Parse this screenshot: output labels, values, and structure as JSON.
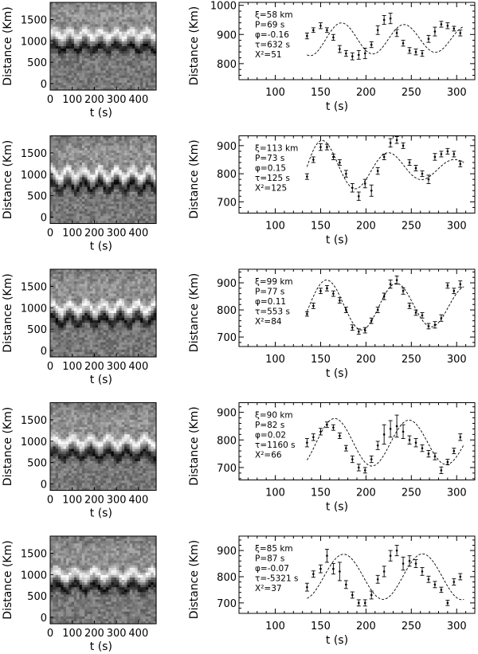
{
  "chart_data": [
    {
      "type": "heatmap",
      "xlabel": "t (s)",
      "ylabel": "Distance (Km)",
      "xlim": [
        0,
        480
      ],
      "ylim": [
        -150,
        1900
      ],
      "xticks": [
        0,
        100,
        200,
        300,
        400
      ],
      "yticks": [
        0,
        500,
        1000,
        1500
      ],
      "colormap": "grayscale",
      "ridge": {
        "base": 960,
        "amp": 70,
        "period": 70,
        "phase": 0.0
      }
    },
    {
      "type": "line",
      "xlabel": "t (s)",
      "ylabel": "Distance (Km)",
      "xlim": [
        60,
        320
      ],
      "ylim": [
        745,
        1010
      ],
      "xticks": [
        100,
        150,
        200,
        250,
        300
      ],
      "yticks": [
        800,
        900,
        1000
      ],
      "params": [
        "ξ=58 km",
        "P=69 s",
        "φ=-0.16",
        "τ=632 s",
        "Χ²=51"
      ],
      "fit": {
        "center": 885,
        "amplitude": 58,
        "period": 69,
        "phase": -0.16,
        "damping": 632
      },
      "x": [
        135,
        142,
        150,
        157,
        164,
        171,
        178,
        185,
        192,
        199,
        206,
        213,
        220,
        227,
        234,
        241,
        248,
        255,
        262,
        269,
        276,
        283,
        290,
        297,
        304
      ],
      "y": [
        895,
        915,
        930,
        915,
        890,
        850,
        835,
        825,
        830,
        835,
        865,
        915,
        950,
        955,
        905,
        870,
        845,
        840,
        835,
        885,
        910,
        935,
        930,
        920,
        905
      ],
      "err": [
        10,
        8,
        10,
        8,
        10,
        12,
        10,
        12,
        15,
        18,
        10,
        15,
        15,
        18,
        12,
        10,
        10,
        10,
        10,
        12,
        15,
        10,
        10,
        8,
        10
      ]
    },
    {
      "type": "heatmap",
      "xlabel": "t (s)",
      "ylabel": "Distance (Km)",
      "xlim": [
        0,
        480
      ],
      "ylim": [
        -150,
        1900
      ],
      "xticks": [
        0,
        100,
        200,
        300,
        400
      ],
      "yticks": [
        0,
        500,
        1000,
        1500
      ],
      "colormap": "grayscale",
      "ridge": {
        "base": 830,
        "amp": 110,
        "period": 73,
        "phase": 0.15
      }
    },
    {
      "type": "line",
      "xlabel": "t (s)",
      "ylabel": "Distance (Km)",
      "xlim": [
        60,
        320
      ],
      "ylim": [
        660,
        935
      ],
      "xticks": [
        100,
        150,
        200,
        250,
        300
      ],
      "yticks": [
        700,
        800,
        900
      ],
      "params": [
        "ξ=113 km",
        "P=73 s",
        "φ=0.15",
        "τ=125 s",
        "Χ²=125"
      ],
      "fit": {
        "center": 820,
        "amplitude": 113,
        "period": 73,
        "phase": 0.15,
        "damping": 125
      },
      "x": [
        135,
        142,
        150,
        157,
        164,
        171,
        178,
        185,
        192,
        199,
        206,
        213,
        220,
        227,
        234,
        241,
        248,
        255,
        262,
        269,
        276,
        283,
        290,
        297,
        304
      ],
      "y": [
        790,
        850,
        895,
        895,
        860,
        840,
        800,
        750,
        720,
        765,
        740,
        810,
        860,
        910,
        920,
        900,
        840,
        820,
        800,
        780,
        860,
        870,
        880,
        870,
        835
      ],
      "err": [
        10,
        10,
        12,
        10,
        10,
        10,
        12,
        15,
        15,
        15,
        20,
        12,
        10,
        15,
        12,
        10,
        10,
        10,
        10,
        15,
        12,
        10,
        10,
        10,
        10
      ]
    },
    {
      "type": "heatmap",
      "xlabel": "t (s)",
      "ylabel": "Distance (Km)",
      "xlim": [
        0,
        480
      ],
      "ylim": [
        -150,
        1900
      ],
      "xticks": [
        0,
        100,
        200,
        300,
        400
      ],
      "yticks": [
        0,
        500,
        1000,
        1500
      ],
      "colormap": "grayscale",
      "ridge": {
        "base": 820,
        "amp": 100,
        "period": 77,
        "phase": 0.11
      }
    },
    {
      "type": "line",
      "xlabel": "t (s)",
      "ylabel": "Distance (Km)",
      "xlim": [
        60,
        320
      ],
      "ylim": [
        665,
        950
      ],
      "xticks": [
        100,
        150,
        200,
        250,
        300
      ],
      "yticks": [
        700,
        800,
        900
      ],
      "params": [
        "ξ=99 km",
        "P=77 s",
        "φ=0.11",
        "τ=553 s",
        "Χ²=84"
      ],
      "fit": {
        "center": 815,
        "amplitude": 99,
        "period": 77,
        "phase": 0.11,
        "damping": 553
      },
      "x": [
        135,
        142,
        150,
        157,
        164,
        171,
        178,
        185,
        192,
        199,
        206,
        213,
        220,
        227,
        234,
        241,
        248,
        255,
        262,
        269,
        276,
        283,
        290,
        297,
        304
      ],
      "y": [
        785,
        815,
        870,
        880,
        860,
        835,
        800,
        735,
        720,
        725,
        760,
        800,
        850,
        895,
        910,
        870,
        815,
        790,
        780,
        740,
        745,
        770,
        890,
        870,
        895
      ],
      "err": [
        8,
        10,
        10,
        10,
        10,
        10,
        10,
        10,
        10,
        10,
        10,
        10,
        12,
        15,
        15,
        12,
        10,
        10,
        10,
        10,
        12,
        12,
        10,
        10,
        12
      ]
    },
    {
      "type": "heatmap",
      "xlabel": "t (s)",
      "ylabel": "Distance (Km)",
      "xlim": [
        0,
        480
      ],
      "ylim": [
        -150,
        1900
      ],
      "xticks": [
        0,
        100,
        200,
        300,
        400
      ],
      "yticks": [
        0,
        500,
        1000,
        1500
      ],
      "colormap": "grayscale",
      "ridge": {
        "base": 800,
        "amp": 90,
        "period": 82,
        "phase": 0.02
      }
    },
    {
      "type": "line",
      "xlabel": "t (s)",
      "ylabel": "Distance (Km)",
      "xlim": [
        60,
        320
      ],
      "ylim": [
        655,
        935
      ],
      "xticks": [
        100,
        150,
        200,
        250,
        300
      ],
      "yticks": [
        700,
        800,
        900
      ],
      "params": [
        "ξ=90 km",
        "P=82 s",
        "φ=0.02",
        "τ=1160 s",
        "Χ²=66"
      ],
      "fit": {
        "center": 790,
        "amplitude": 90,
        "period": 82,
        "phase": 0.02,
        "damping": 1160
      },
      "x": [
        135,
        142,
        150,
        157,
        164,
        171,
        178,
        185,
        192,
        199,
        206,
        213,
        220,
        227,
        234,
        241,
        248,
        255,
        262,
        269,
        276,
        283,
        290,
        297,
        304
      ],
      "y": [
        790,
        810,
        830,
        855,
        845,
        815,
        770,
        730,
        700,
        690,
        730,
        780,
        820,
        840,
        850,
        830,
        800,
        790,
        770,
        750,
        740,
        690,
        720,
        760,
        810
      ],
      "err": [
        15,
        12,
        12,
        10,
        10,
        10,
        10,
        12,
        12,
        10,
        12,
        15,
        35,
        30,
        40,
        25,
        15,
        15,
        12,
        12,
        12,
        12,
        10,
        10,
        12
      ]
    },
    {
      "type": "heatmap",
      "xlabel": "t (s)",
      "ylabel": "Distance (Km)",
      "xlim": [
        0,
        480
      ],
      "ylim": [
        -150,
        1900
      ],
      "xticks": [
        0,
        100,
        200,
        300,
        400
      ],
      "yticks": [
        0,
        500,
        1000,
        1500
      ],
      "colormap": "grayscale",
      "ridge": {
        "base": 820,
        "amp": 85,
        "period": 87,
        "phase": -0.07
      }
    },
    {
      "type": "line",
      "xlabel": "t (s)",
      "ylabel": "Distance (Km)",
      "xlim": [
        60,
        320
      ],
      "ylim": [
        660,
        955
      ],
      "xticks": [
        100,
        150,
        200,
        250,
        300
      ],
      "yticks": [
        700,
        800,
        900
      ],
      "params": [
        "ξ=85 km",
        "P=87 s",
        "φ=-0.07",
        "τ=-5321 s",
        "Χ²=37"
      ],
      "fit": {
        "center": 800,
        "amplitude": 85,
        "period": 87,
        "phase": -0.07,
        "damping": -5321
      },
      "x": [
        135,
        142,
        150,
        157,
        164,
        171,
        178,
        185,
        192,
        199,
        206,
        213,
        220,
        227,
        234,
        241,
        248,
        255,
        262,
        269,
        276,
        283,
        290,
        297,
        304
      ],
      "y": [
        760,
        810,
        830,
        880,
        830,
        820,
        770,
        730,
        700,
        700,
        730,
        790,
        820,
        880,
        900,
        850,
        860,
        850,
        820,
        790,
        770,
        750,
        700,
        780,
        800
      ],
      "err": [
        15,
        12,
        15,
        25,
        20,
        35,
        15,
        12,
        12,
        12,
        15,
        15,
        20,
        20,
        20,
        25,
        20,
        15,
        15,
        12,
        12,
        10,
        10,
        12,
        12
      ]
    }
  ]
}
